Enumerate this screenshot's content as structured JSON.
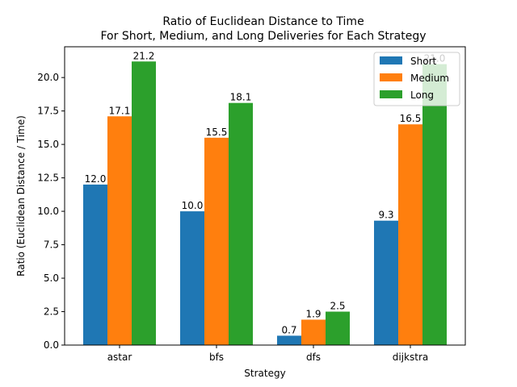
{
  "chart_data": {
    "type": "bar",
    "title": "Ratio of Euclidean Distance to Time",
    "subtitle": "For Short, Medium, and Long Deliveries for Each Strategy",
    "xlabel": "Strategy",
    "ylabel": "Ratio (Euclidean Distance / Time)",
    "categories": [
      "astar",
      "bfs",
      "dfs",
      "dijkstra"
    ],
    "series": [
      {
        "name": "Short",
        "color": "#1f77b4",
        "values": [
          12.0,
          10.0,
          0.7,
          9.3
        ],
        "labels": [
          "12.0",
          "10.0",
          "0.7",
          "9.3"
        ]
      },
      {
        "name": "Medium",
        "color": "#ff7f0e",
        "values": [
          17.1,
          15.5,
          1.9,
          16.5
        ],
        "labels": [
          "17.1",
          "15.5",
          "1.9",
          "16.5"
        ]
      },
      {
        "name": "Long",
        "color": "#2ca02c",
        "values": [
          21.2,
          18.1,
          2.5,
          21.0
        ],
        "labels": [
          "21.2",
          "18.1",
          "2.5",
          "21.0"
        ]
      }
    ],
    "ylim": [
      0,
      22.3
    ],
    "yticks": [
      "0.0",
      "2.5",
      "5.0",
      "7.5",
      "10.0",
      "12.5",
      "15.0",
      "17.5",
      "20.0"
    ],
    "grid": false,
    "legend_position": "top-right"
  }
}
